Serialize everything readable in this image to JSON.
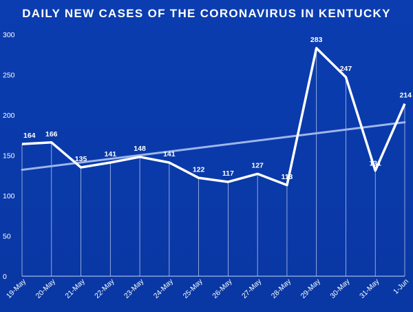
{
  "chart_data": {
    "type": "line",
    "title": "DAILY NEW CASES OF THE CORONAVIRUS IN KENTUCKY",
    "xlabel": "",
    "ylabel": "",
    "categories": [
      "19-May",
      "20-May",
      "21-May",
      "22-May",
      "23-May",
      "24-May",
      "25-May",
      "26-May",
      "27-May",
      "28-May",
      "29-May",
      "30-May",
      "31-May",
      "1-Jun"
    ],
    "series": [
      {
        "values": [
          164,
          166,
          135,
          141,
          148,
          141,
          122,
          117,
          127,
          113,
          283,
          247,
          131,
          214
        ]
      }
    ],
    "trendline": {
      "type": "linear",
      "start": 132,
      "end": 191
    },
    "ylim": [
      0,
      300
    ],
    "yticks": [
      0,
      50,
      100,
      150,
      200,
      250,
      300
    ],
    "data_labels": true,
    "drop_lines": true,
    "legend": "none",
    "colors": {
      "background": "#0a3aa8",
      "line": "#ffffff",
      "trend": "#9fb6ea"
    }
  }
}
